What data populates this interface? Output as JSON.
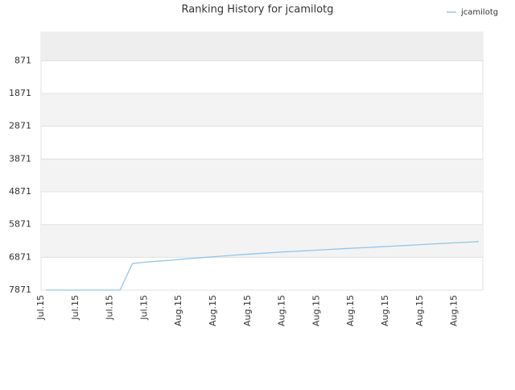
{
  "chart_data": {
    "type": "line",
    "title": "Ranking History for jcamilotg",
    "xticks": [
      "Jul.15",
      "Jul.15",
      "Jul.15",
      "Jul.15",
      "Aug.15",
      "Aug.15",
      "Aug.15",
      "Aug.15",
      "Aug.15",
      "Aug.15",
      "Aug.15",
      "Aug.15",
      "Aug.15"
    ],
    "ylim": [
      7871,
      0
    ],
    "yticks": [
      871,
      1871,
      2871,
      3871,
      4871,
      5871,
      6871,
      7871
    ],
    "y_inverted": true,
    "grid": true,
    "series": [
      {
        "name": "jcamilotg",
        "color": "#92c5ec",
        "values": [
          7871,
          7871,
          7871,
          7871,
          7871,
          7871,
          7871,
          7060,
          7020,
          6990,
          6960,
          6930,
          6900,
          6870,
          6840,
          6810,
          6785,
          6760,
          6735,
          6710,
          6690,
          6670,
          6650,
          6630,
          6610,
          6590,
          6570,
          6550,
          6530,
          6510,
          6490,
          6470,
          6450,
          6430,
          6410,
          6390
        ]
      }
    ]
  }
}
